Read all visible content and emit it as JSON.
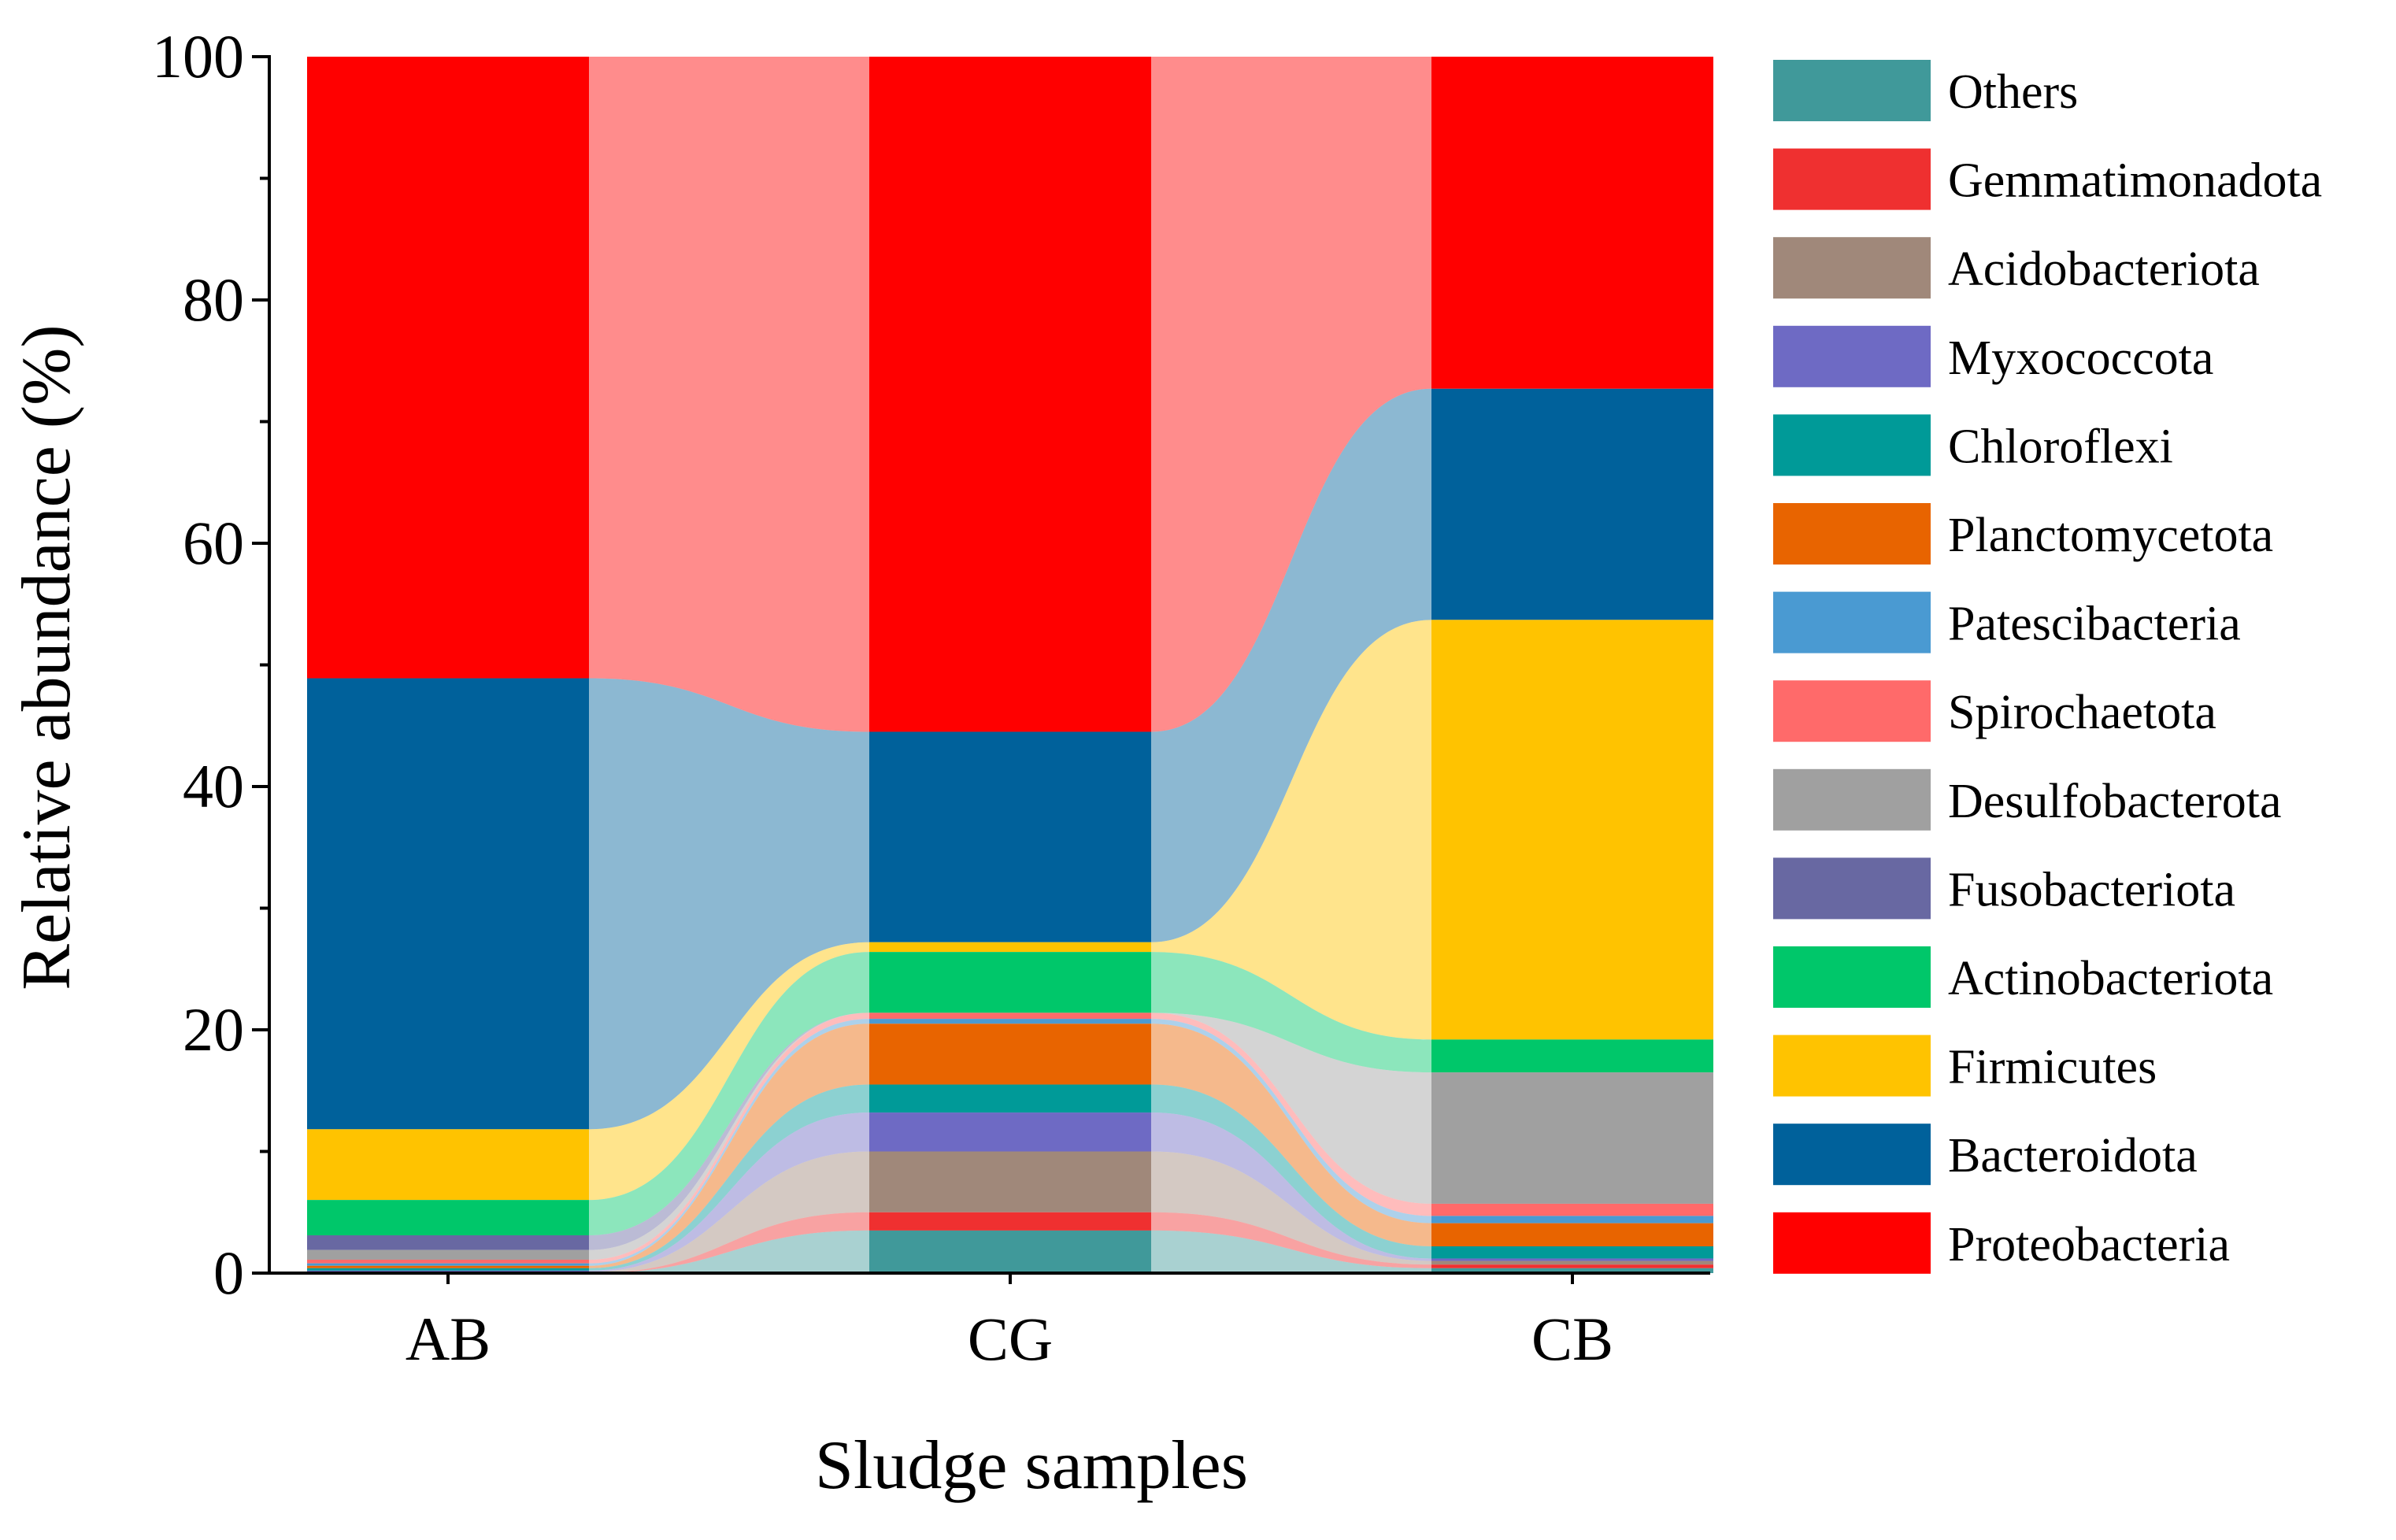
{
  "chart_data": {
    "type": "stacked-bar-alluvial",
    "title": "",
    "xlabel": "Sludge samples",
    "ylabel": "Relative abundance (%)",
    "ylim": [
      0,
      100
    ],
    "yticks": [
      0,
      20,
      40,
      60,
      80,
      100
    ],
    "categories": [
      "AB",
      "CG",
      "CB"
    ],
    "series": [
      {
        "name": "Proteobacteria",
        "color": "#ff0000",
        "values": [
          51.0,
          55.5,
          27.3
        ]
      },
      {
        "name": "Bacteroidota",
        "color": "#00619b",
        "values": [
          37.0,
          17.3,
          19.0
        ]
      },
      {
        "name": "Firmicutes",
        "color": "#ffc300",
        "values": [
          5.8,
          0.8,
          34.5
        ]
      },
      {
        "name": "Actinobacteriota",
        "color": "#00c76a",
        "values": [
          2.9,
          5.0,
          2.7
        ]
      },
      {
        "name": "Fusobacteriota",
        "color": "#6868a2",
        "values": [
          1.2,
          0.0,
          0.0
        ]
      },
      {
        "name": "Desulfobacterota",
        "color": "#a0a0a0",
        "values": [
          0.8,
          0.0,
          10.8
        ]
      },
      {
        "name": "Spirochaetota",
        "color": "#ff6a6a",
        "values": [
          0.3,
          0.5,
          1.0
        ]
      },
      {
        "name": "Patescibacteria",
        "color": "#4a9ad2",
        "values": [
          0.2,
          0.4,
          0.6
        ]
      },
      {
        "name": "Planctomycetota",
        "color": "#e86400",
        "values": [
          0.2,
          5.0,
          1.9
        ]
      },
      {
        "name": "Chloroflexi",
        "color": "#009a98",
        "values": [
          0.2,
          2.3,
          1.0
        ]
      },
      {
        "name": "Myxococcota",
        "color": "#6e6ac4",
        "values": [
          0.1,
          3.2,
          0.2
        ]
      },
      {
        "name": "Acidobacteriota",
        "color": "#a0887a",
        "values": [
          0.1,
          5.0,
          0.3
        ]
      },
      {
        "name": "Gemmatimonadota",
        "color": "#ef3030",
        "values": [
          0.0,
          1.5,
          0.3
        ]
      },
      {
        "name": "Others",
        "color": "#40999a",
        "values": [
          0.0,
          3.5,
          0.4
        ]
      }
    ],
    "legend_order": [
      "Others",
      "Gemmatimonadota",
      "Acidobacteriota",
      "Myxococcota",
      "Chloroflexi",
      "Planctomycetota",
      "Patescibacteria",
      "Spirochaetota",
      "Desulfobacterota",
      "Fusobacteriota",
      "Actinobacteriota",
      "Firmicutes",
      "Bacteroidota",
      "Proteobacteria"
    ],
    "legend_position": "right"
  }
}
